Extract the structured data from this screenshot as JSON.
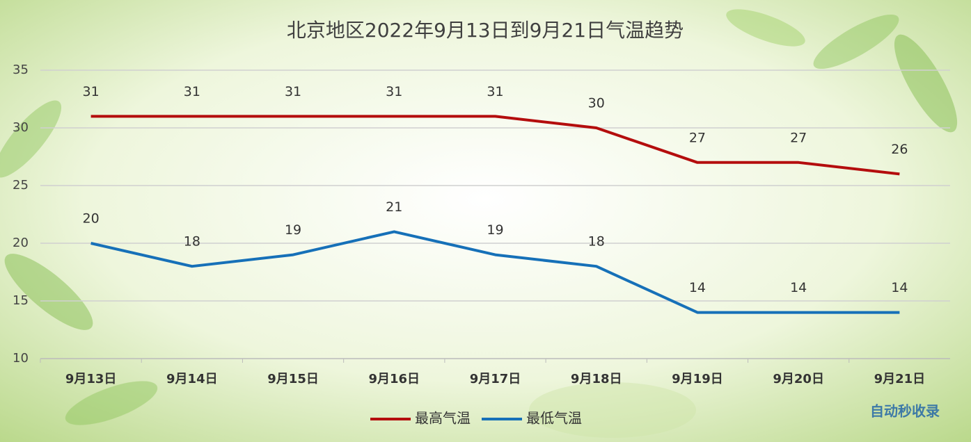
{
  "chart_data": {
    "type": "line",
    "title": "北京地区2022年9月13日到9月21日气温趋势",
    "categories": [
      "9月13日",
      "9月14日",
      "9月15日",
      "9月16日",
      "9月17日",
      "9月18日",
      "9月19日",
      "9月20日",
      "9月21日"
    ],
    "series": [
      {
        "name": "最高气温",
        "color": "#b40d0d",
        "values": [
          31,
          31,
          31,
          31,
          31,
          30,
          27,
          27,
          26
        ]
      },
      {
        "name": "最低气温",
        "color": "#1670b8",
        "values": [
          20,
          18,
          19,
          21,
          19,
          18,
          14,
          14,
          14
        ]
      }
    ],
    "ylim": [
      10,
      35
    ],
    "yticks": [
      10,
      15,
      20,
      25,
      30,
      35
    ],
    "grid": true,
    "legend": "bottom",
    "watermark": "自动秒收录"
  }
}
